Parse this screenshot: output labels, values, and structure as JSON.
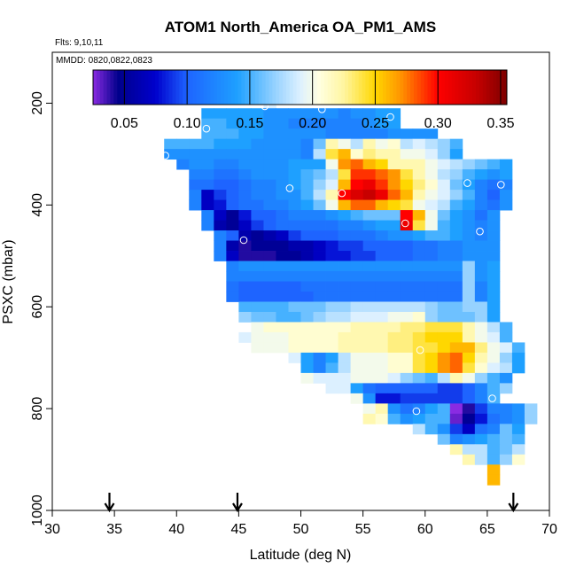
{
  "chart_data": {
    "type": "heatmap",
    "title": "ATOM1 North_America OA_PM1_AMS",
    "subtitle_flights": "Flts: 9,10,11",
    "subtitle_dates": "MMDD: 0820,0822,0823",
    "xlabel": "Latitude (deg N)",
    "ylabel": "PSXC (mbar)",
    "xlim": [
      30,
      70
    ],
    "ylim": [
      1000,
      100
    ],
    "x_ticks": [
      30,
      35,
      40,
      45,
      50,
      55,
      60,
      65,
      70
    ],
    "y_ticks": [
      200,
      400,
      600,
      800,
      1000
    ],
    "colorbar": {
      "range": [
        0.025,
        0.355
      ],
      "tick_values": [
        0.05,
        0.1,
        0.15,
        0.2,
        0.25,
        0.3,
        0.35
      ],
      "tick_labels": [
        "0.05",
        "0.10",
        "0.15",
        "0.20",
        "0.25",
        "0.30",
        "0.35"
      ]
    },
    "cell_width_deg": 1,
    "cell_height_mbar": 20,
    "rows": [
      {
        "p": 200,
        "lat0": 47,
        "values": [
          0.19
        ]
      },
      {
        "p": 220,
        "lat0": 42,
        "values": [
          0.14,
          0.14,
          0.14,
          0.14,
          0.14,
          0.13,
          0.13,
          0.13,
          0.13,
          0.13,
          0.13,
          0.12,
          0.13,
          0.13,
          0.14,
          0.14
        ]
      },
      {
        "p": 240,
        "lat0": 42,
        "values": [
          0.15,
          0.15,
          0.14,
          0.14,
          0.14,
          0.13,
          0.13,
          0.12,
          0.12,
          0.12,
          0.12,
          0.12,
          0.12,
          0.13,
          0.14,
          0.14
        ]
      },
      {
        "p": 260,
        "lat0": 42,
        "values": [
          0.15,
          0.15,
          0.15,
          0.14,
          0.14,
          0.13,
          0.13,
          0.13,
          0.13,
          0.13,
          0.12,
          0.12,
          0.12,
          0.12,
          0.12,
          0.13,
          0.13,
          0.13,
          0.13
        ]
      },
      {
        "p": 280,
        "lat0": 39,
        "values": [
          0.15,
          0.15,
          0.15,
          0.15,
          0.14,
          0.14,
          0.14,
          0.13,
          0.13,
          0.13,
          0.13,
          0.12,
          0.16,
          0.22,
          0.2,
          0.18,
          0.22,
          0.2,
          0.21,
          0.18,
          0.19,
          0.18,
          0.17,
          0.15
        ]
      },
      {
        "p": 300,
        "lat0": 39,
        "values": [
          0.13,
          0.13,
          0.13,
          0.13,
          0.13,
          0.13,
          0.13,
          0.13,
          0.13,
          0.13,
          0.13,
          0.12,
          0.18,
          0.24,
          0.26,
          0.21,
          0.23,
          0.22,
          0.22,
          0.2,
          0.2,
          0.19,
          0.17,
          0.14
        ]
      },
      {
        "p": 320,
        "lat0": 40,
        "values": [
          0.12,
          0.13,
          0.13,
          0.12,
          0.12,
          0.13,
          0.13,
          0.13,
          0.13,
          0.14,
          0.14,
          0.14,
          0.2,
          0.27,
          0.28,
          0.26,
          0.25,
          0.22,
          0.22,
          0.22,
          0.2,
          0.19,
          0.18,
          0.17,
          0.16,
          0.15,
          0.14
        ]
      },
      {
        "p": 340,
        "lat0": 41,
        "values": [
          0.12,
          0.12,
          0.11,
          0.11,
          0.12,
          0.13,
          0.13,
          0.13,
          0.14,
          0.15,
          0.16,
          0.18,
          0.24,
          0.29,
          0.29,
          0.28,
          0.27,
          0.24,
          0.22,
          0.2,
          0.18,
          0.17,
          0.15,
          0.14,
          0.13,
          0.14
        ]
      },
      {
        "p": 360,
        "lat0": 41,
        "values": [
          0.11,
          0.11,
          0.1,
          0.1,
          0.11,
          0.12,
          0.12,
          0.13,
          0.14,
          0.15,
          0.17,
          0.19,
          0.26,
          0.3,
          0.31,
          0.29,
          0.27,
          0.25,
          0.23,
          0.21,
          0.19,
          0.16,
          0.14,
          0.12,
          0.11,
          0.12
        ]
      },
      {
        "p": 380,
        "lat0": 41,
        "values": [
          0.12,
          0.07,
          0.09,
          0.1,
          0.11,
          0.12,
          0.12,
          0.13,
          0.13,
          0.15,
          0.18,
          0.22,
          0.3,
          0.32,
          0.33,
          0.31,
          0.28,
          0.26,
          0.22,
          0.2,
          0.19,
          0.17,
          0.15,
          0.12,
          0.1,
          0.13
        ]
      },
      {
        "p": 400,
        "lat0": 41,
        "values": [
          0.12,
          0.07,
          0.08,
          0.1,
          0.11,
          0.11,
          0.12,
          0.12,
          0.13,
          0.14,
          0.16,
          0.2,
          0.26,
          0.28,
          0.28,
          0.26,
          0.25,
          0.24,
          0.2,
          0.19,
          0.18,
          0.15,
          0.14,
          0.12,
          0.11,
          0.13
        ]
      },
      {
        "p": 420,
        "lat0": 42,
        "values": [
          0.12,
          0.07,
          0.05,
          0.08,
          0.1,
          0.1,
          0.11,
          0.12,
          0.12,
          0.12,
          0.13,
          0.14,
          0.15,
          0.16,
          0.16,
          0.16,
          0.3,
          0.26,
          0.2,
          0.16,
          0.14,
          0.13,
          0.11,
          0.13
        ]
      },
      {
        "p": 440,
        "lat0": 42,
        "values": [
          0.12,
          0.06,
          0.05,
          0.07,
          0.09,
          0.1,
          0.11,
          0.11,
          0.11,
          0.11,
          0.11,
          0.12,
          0.12,
          0.13,
          0.14,
          0.14,
          0.31,
          0.24,
          0.2,
          0.15,
          0.14,
          0.13,
          0.12,
          0.13
        ]
      },
      {
        "p": 460,
        "lat0": 43,
        "values": [
          0.12,
          0.1,
          0.06,
          0.05,
          0.06,
          0.07,
          0.09,
          0.1,
          0.1,
          0.1,
          0.11,
          0.11,
          0.11,
          0.12,
          0.13,
          0.13,
          0.14,
          0.15,
          0.15,
          0.14,
          0.13,
          0.12,
          0.13
        ]
      },
      {
        "p": 480,
        "lat0": 43,
        "values": [
          0.12,
          0.06,
          0.04,
          0.05,
          0.05,
          0.05,
          0.06,
          0.06,
          0.07,
          0.08,
          0.09,
          0.09,
          0.1,
          0.1,
          0.1,
          0.1,
          0.11,
          0.11,
          0.12,
          0.12,
          0.13,
          0.13,
          0.13
        ]
      },
      {
        "p": 500,
        "lat0": 43,
        "values": [
          0.12,
          0.07,
          0.04,
          0.04,
          0.04,
          0.05,
          0.05,
          0.06,
          0.07,
          0.08,
          0.08,
          0.09,
          0.09,
          0.1,
          0.1,
          0.1,
          0.11,
          0.11,
          0.12,
          0.12,
          0.13,
          0.13,
          0.13
        ]
      },
      {
        "p": 520,
        "lat0": 44,
        "values": [
          0.12,
          0.13,
          0.13,
          0.13,
          0.13,
          0.13,
          0.13,
          0.13,
          0.13,
          0.13,
          0.13,
          0.13,
          0.13,
          0.13,
          0.13,
          0.13,
          0.13,
          0.13,
          0.13,
          0.17,
          0.13,
          0.14
        ]
      },
      {
        "p": 540,
        "lat0": 44,
        "values": [
          0.12,
          0.12,
          0.12,
          0.12,
          0.12,
          0.12,
          0.12,
          0.12,
          0.12,
          0.12,
          0.12,
          0.12,
          0.12,
          0.12,
          0.12,
          0.12,
          0.12,
          0.12,
          0.12,
          0.17,
          0.13,
          0.14
        ]
      },
      {
        "p": 560,
        "lat0": 44,
        "values": [
          0.11,
          0.1,
          0.1,
          0.1,
          0.1,
          0.1,
          0.11,
          0.11,
          0.11,
          0.11,
          0.11,
          0.11,
          0.11,
          0.11,
          0.11,
          0.11,
          0.11,
          0.11,
          0.11,
          0.17,
          0.12,
          0.14
        ]
      },
      {
        "p": 580,
        "lat0": 44,
        "values": [
          0.11,
          0.1,
          0.1,
          0.1,
          0.1,
          0.1,
          0.1,
          0.11,
          0.11,
          0.11,
          0.11,
          0.11,
          0.11,
          0.11,
          0.11,
          0.11,
          0.11,
          0.11,
          0.11,
          0.17,
          0.12,
          0.14
        ]
      },
      {
        "p": 600,
        "lat0": 45,
        "values": [
          0.15,
          0.15,
          0.15,
          0.15,
          0.16,
          0.16,
          0.16,
          0.17,
          0.17,
          0.18,
          0.18,
          0.18,
          0.18,
          0.18,
          0.18,
          0.17,
          0.16,
          0.16,
          0.17,
          0.17,
          0.14
        ]
      },
      {
        "p": 620,
        "lat0": 45,
        "values": [
          0.17,
          0.16,
          0.16,
          0.15,
          0.15,
          0.16,
          0.17,
          0.18,
          0.18,
          0.19,
          0.19,
          0.19,
          0.2,
          0.2,
          0.21,
          0.17,
          0.16,
          0.16,
          0.16,
          0.17,
          0.14
        ]
      },
      {
        "p": 640,
        "lat0": 46,
        "values": [
          0.2,
          0.21,
          0.21,
          0.21,
          0.21,
          0.21,
          0.21,
          0.21,
          0.22,
          0.22,
          0.22,
          0.22,
          0.23,
          0.23,
          0.24,
          0.24,
          0.24,
          0.22,
          0.2,
          0.18,
          0.15
        ]
      },
      {
        "p": 660,
        "lat0": 45,
        "values": [
          0.19,
          0.2,
          0.2,
          0.2,
          0.21,
          0.21,
          0.21,
          0.21,
          0.22,
          0.22,
          0.22,
          0.22,
          0.23,
          0.23,
          0.24,
          0.25,
          0.25,
          0.25,
          0.22,
          0.2,
          0.19,
          0.15
        ]
      },
      {
        "p": 680,
        "lat0": 46,
        "values": [
          0.2,
          0.2,
          0.2,
          0.21,
          0.21,
          0.21,
          0.21,
          0.22,
          0.22,
          0.22,
          0.22,
          0.23,
          0.23,
          0.24,
          0.24,
          0.25,
          0.26,
          0.26,
          0.23,
          0.2,
          0.19,
          0.15
        ]
      },
      {
        "p": 700,
        "lat0": 49,
        "values": [
          0.19,
          0.14,
          0.12,
          0.14,
          0.18,
          0.2,
          0.2,
          0.2,
          0.21,
          0.21,
          0.24,
          0.25,
          0.27,
          0.28,
          0.25,
          0.22,
          0.2,
          0.17,
          0.14
        ]
      },
      {
        "p": 720,
        "lat0": 50,
        "values": [
          0.14,
          0.12,
          0.15,
          0.18,
          0.2,
          0.2,
          0.2,
          0.21,
          0.21,
          0.24,
          0.25,
          0.27,
          0.28,
          0.24,
          0.21,
          0.19,
          0.18,
          0.14
        ]
      },
      {
        "p": 740,
        "lat0": 50,
        "values": [
          0.2,
          0.19,
          0.19,
          0.19,
          0.2,
          0.2,
          0.2,
          0.19,
          0.17,
          0.16,
          0.15,
          0.18,
          0.22,
          0.2,
          0.17,
          0.15,
          0.13
        ]
      },
      {
        "p": 760,
        "lat0": 52,
        "values": [
          0.19,
          0.19,
          0.14,
          0.11,
          0.1,
          0.1,
          0.1,
          0.1,
          0.1,
          0.09,
          0.09,
          0.1,
          0.12,
          0.15,
          0.17
        ]
      },
      {
        "p": 780,
        "lat0": 54,
        "values": [
          0.2,
          0.13,
          0.08,
          0.08,
          0.09,
          0.09,
          0.09,
          0.09,
          0.09,
          0.1,
          0.12,
          0.15
        ]
      },
      {
        "p": 800,
        "lat0": 55,
        "values": [
          0.2,
          0.22,
          0.13,
          0.11,
          0.12,
          0.14,
          0.15,
          0.02,
          0.04,
          0.09,
          0.12,
          0.12,
          0.13,
          0.17
        ]
      },
      {
        "p": 820,
        "lat0": 55,
        "values": [
          0.22,
          0.21,
          0.15,
          0.13,
          0.14,
          0.15,
          0.15,
          0.03,
          0.05,
          0.08,
          0.11,
          0.12,
          0.13,
          0.17
        ]
      },
      {
        "p": 840,
        "lat0": 59,
        "values": [
          0.18,
          0.15,
          0.13,
          0.09,
          0.07,
          0.11,
          0.12,
          0.16,
          0.14
        ]
      },
      {
        "p": 860,
        "lat0": 61,
        "values": [
          0.16,
          0.12,
          0.13,
          0.14,
          0.15,
          0.16,
          0.15
        ]
      },
      {
        "p": 880,
        "lat0": 62,
        "values": [
          0.22,
          0.18,
          0.18,
          0.15,
          0.16,
          0.18
        ]
      },
      {
        "p": 900,
        "lat0": 63,
        "values": [
          0.22,
          0.18,
          0.15,
          0.17,
          0.21
        ]
      },
      {
        "p": 920,
        "lat0": 65,
        "values": [
          0.26
        ]
      },
      {
        "p": 940,
        "lat0": 65,
        "values": [
          0.26
        ]
      }
    ],
    "points": [
      {
        "lat": 47.1,
        "p": 206
      },
      {
        "lat": 51.7,
        "p": 212
      },
      {
        "lat": 57.2,
        "p": 227
      },
      {
        "lat": 42.4,
        "p": 250
      },
      {
        "lat": 39.1,
        "p": 303
      },
      {
        "lat": 49.1,
        "p": 367
      },
      {
        "lat": 53.3,
        "p": 377
      },
      {
        "lat": 63.4,
        "p": 357
      },
      {
        "lat": 66.1,
        "p": 360
      },
      {
        "lat": 58.4,
        "p": 436
      },
      {
        "lat": 64.4,
        "p": 452
      },
      {
        "lat": 45.4,
        "p": 469
      },
      {
        "lat": 59.6,
        "p": 685
      },
      {
        "lat": 65.4,
        "p": 780
      },
      {
        "lat": 59.3,
        "p": 805
      }
    ],
    "flight_markers": [
      34.6,
      44.9,
      67.1
    ]
  }
}
